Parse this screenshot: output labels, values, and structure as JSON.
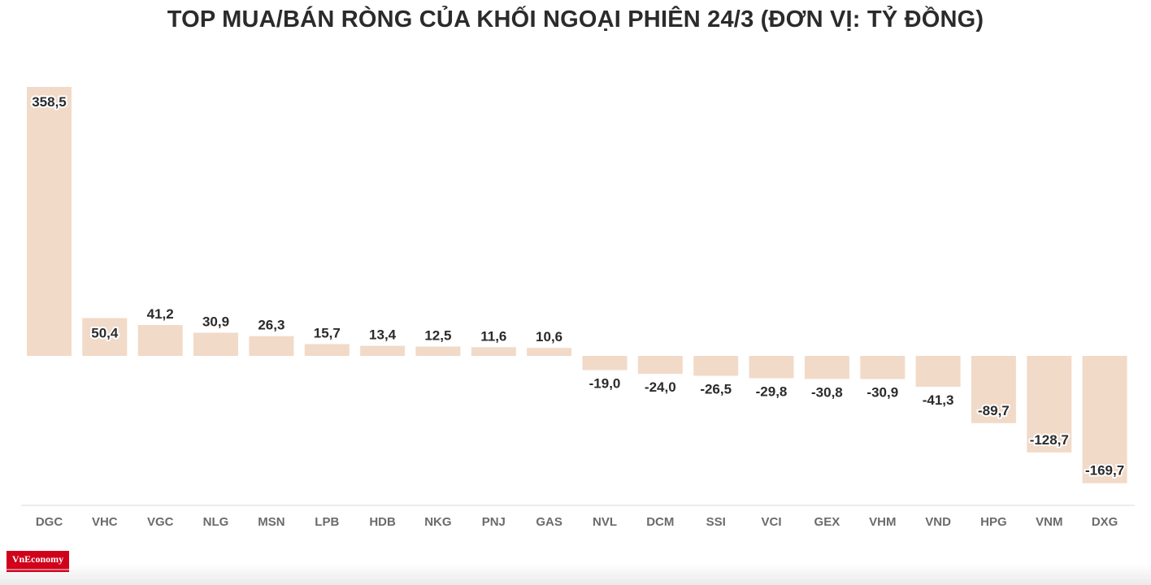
{
  "title": "TOP MUA/BÁN RÒNG CỦA KHỐI NGOẠI PHIÊN 24/3 (ĐƠN VỊ: TỶ ĐỒNG)",
  "logo_text": "VnEconomy",
  "colors": {
    "bar": "#f2dac8",
    "axis": "#d9d9d9",
    "label": "#2b2b2b",
    "tick": "#6b6b6b",
    "brand": "#d0021b"
  },
  "chart_data": {
    "type": "bar",
    "title": "TOP MUA/BÁN RÒNG CỦA KHỐI NGOẠI PHIÊN 24/3 (ĐƠN VỊ: TỶ ĐỒNG)",
    "xlabel": "",
    "ylabel": "",
    "grid": false,
    "legend": "none",
    "categories": [
      "DGC",
      "VHC",
      "VGC",
      "NLG",
      "MSN",
      "LPB",
      "HDB",
      "NKG",
      "PNJ",
      "GAS",
      "NVL",
      "DCM",
      "SSI",
      "VCI",
      "GEX",
      "VHM",
      "VND",
      "HPG",
      "VNM",
      "DXG"
    ],
    "values": [
      358.5,
      50.4,
      41.2,
      30.9,
      26.3,
      15.7,
      13.4,
      12.5,
      11.6,
      10.6,
      -19.0,
      -24.0,
      -26.5,
      -29.8,
      -30.8,
      -30.9,
      -41.3,
      -89.7,
      -128.7,
      -169.7
    ],
    "value_labels": [
      "358,5",
      "50,4",
      "41,2",
      "30,9",
      "26,3",
      "15,7",
      "13,4",
      "12,5",
      "11,6",
      "10,6",
      "-19,0",
      "-24,0",
      "-26,5",
      "-29,8",
      "-30,8",
      "-30,9",
      "-41,3",
      "-89,7",
      "-128,7",
      "-169,7"
    ]
  }
}
